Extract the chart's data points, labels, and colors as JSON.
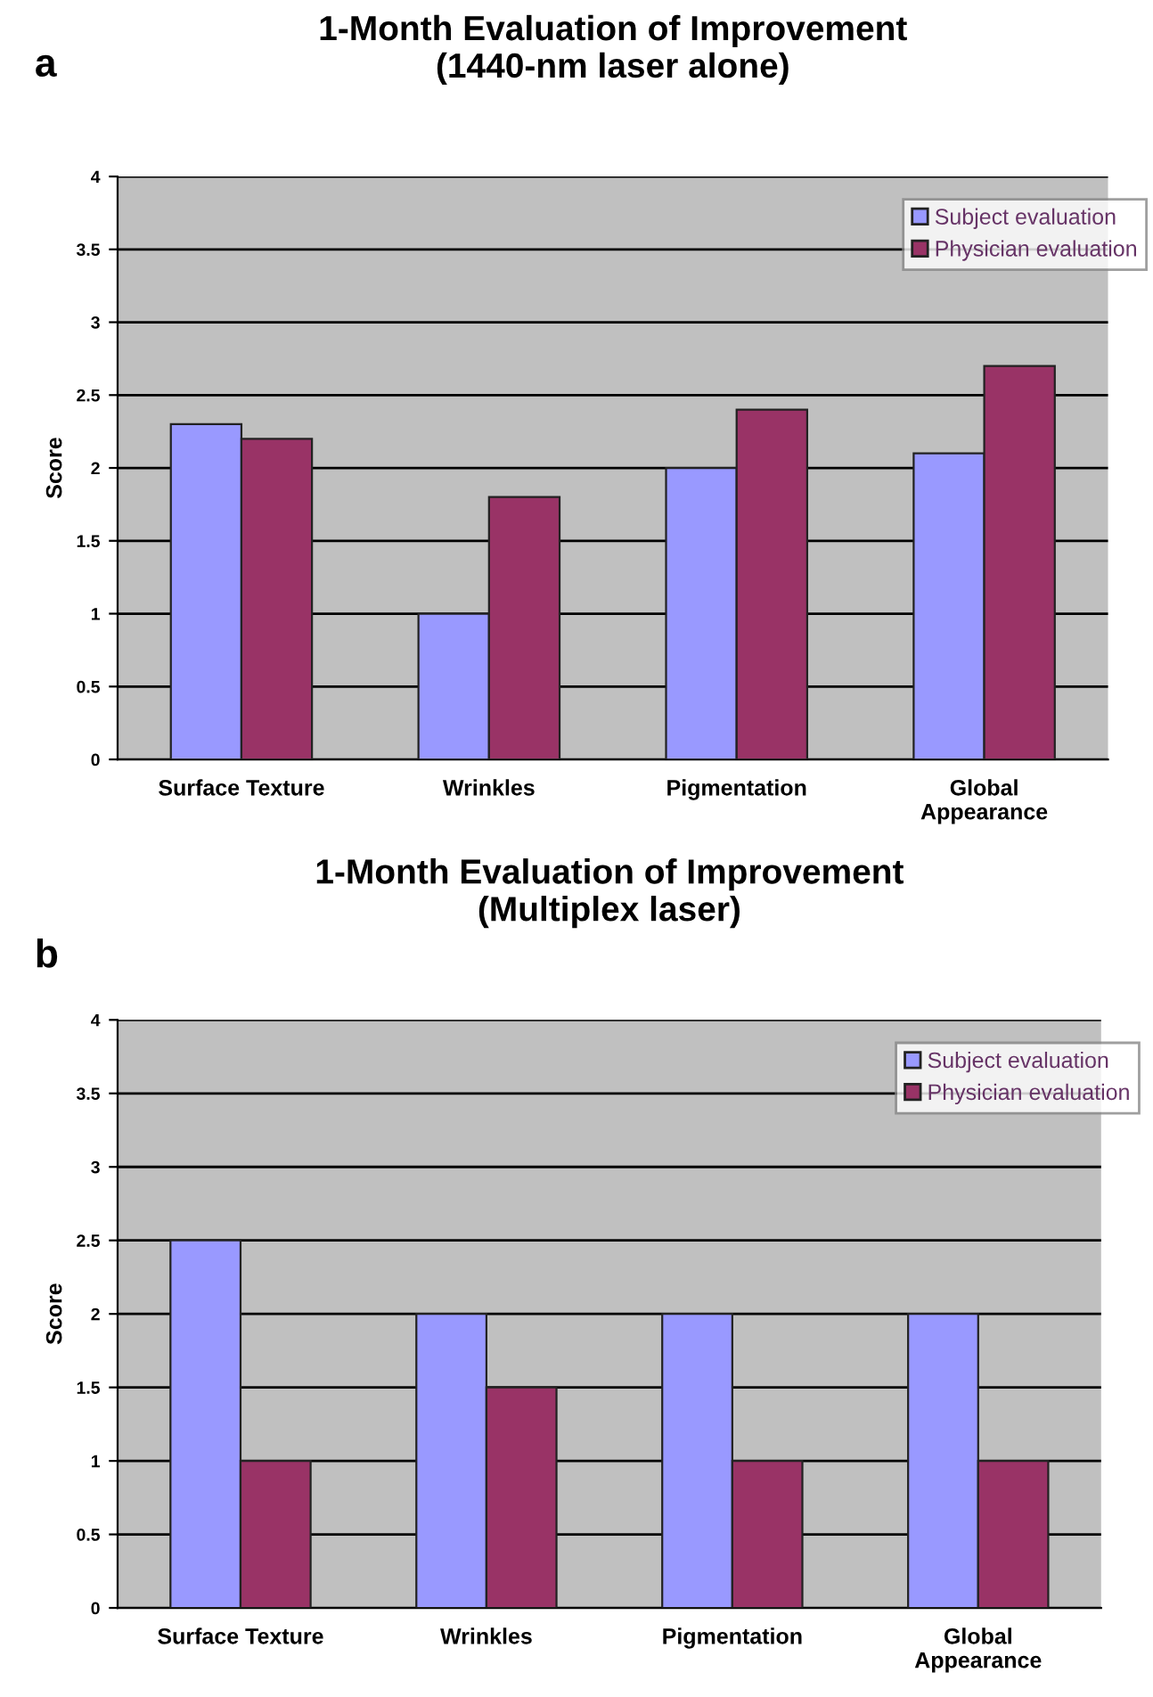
{
  "chart_data": [
    {
      "type": "bar",
      "title": "1-Month Evaluation of Improvement\n(1440-nm laser alone)",
      "ylabel": "Score",
      "annotations": [
        "a"
      ],
      "categories": [
        "Surface Texture",
        "Wrinkles",
        "Pigmentation",
        "Global\nAppearance"
      ],
      "series": [
        {
          "name": "Subject evaluation",
          "color": "#9999ff",
          "values": [
            2.3,
            1.0,
            2.0,
            2.1
          ]
        },
        {
          "name": "Physician evaluation",
          "color": "#993366",
          "values": [
            2.2,
            1.8,
            2.4,
            2.7
          ]
        }
      ],
      "ylim": [
        0,
        4
      ],
      "yticks": [
        0,
        0.5,
        1,
        1.5,
        2,
        2.5,
        3,
        3.5,
        4
      ],
      "grid": "y",
      "legend": "top right"
    },
    {
      "type": "bar",
      "title": "1-Month Evaluation of Improvement\n(Multiplex laser)",
      "ylabel": "Score",
      "annotations": [
        "b"
      ],
      "categories": [
        "Surface Texture",
        "Wrinkles",
        "Pigmentation",
        "Global\nAppearance"
      ],
      "series": [
        {
          "name": "Subject evaluation",
          "color": "#9999ff",
          "values": [
            2.5,
            2.0,
            2.0,
            2.0
          ]
        },
        {
          "name": "Physician evaluation",
          "color": "#993366",
          "values": [
            1.0,
            1.5,
            1.0,
            1.0
          ]
        }
      ],
      "ylim": [
        0,
        4
      ],
      "yticks": [
        0,
        0.5,
        1,
        1.5,
        2,
        2.5,
        3,
        3.5,
        4
      ],
      "grid": "y",
      "legend": "top right"
    }
  ]
}
